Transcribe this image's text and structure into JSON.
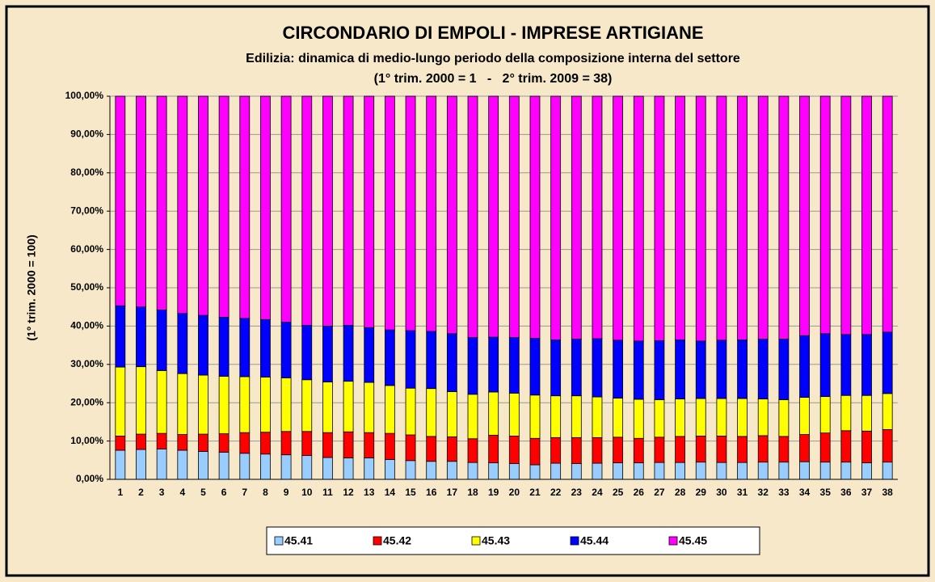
{
  "chart_data": {
    "type": "stacked_bar",
    "title": "CIRCONDARIO DI EMPOLI - IMPRESE ARTIGIANE",
    "subtitle": "Edilizia: dinamica di medio-lungo periodo della composizione interna del settore",
    "subtitle2": "(1° trim. 2000 = 1   -   2° trim. 2009 = 38)",
    "y_label": "(1° trim. 2000 = 100)",
    "categories": [
      1,
      2,
      3,
      4,
      5,
      6,
      7,
      8,
      9,
      10,
      11,
      12,
      13,
      14,
      15,
      16,
      17,
      18,
      19,
      20,
      21,
      22,
      23,
      24,
      25,
      26,
      27,
      28,
      29,
      30,
      31,
      32,
      33,
      34,
      35,
      36,
      37,
      38
    ],
    "ylim": [
      0,
      100
    ],
    "yticks": [
      {
        "value": 0,
        "label": "0,00%"
      },
      {
        "value": 10,
        "label": "10,00%"
      },
      {
        "value": 20,
        "label": "20,00%"
      },
      {
        "value": 30,
        "label": "30,00%"
      },
      {
        "value": 40,
        "label": "40,00%"
      },
      {
        "value": 50,
        "label": "50,00%"
      },
      {
        "value": 60,
        "label": "60,00%"
      },
      {
        "value": 70,
        "label": "70,00%"
      },
      {
        "value": 80,
        "label": "80,00%"
      },
      {
        "value": 90,
        "label": "90,00%"
      },
      {
        "value": 100,
        "label": "100,00%"
      }
    ],
    "grid": true,
    "legend": "bottom",
    "series": [
      {
        "name": "45.41",
        "color": "#99ccff",
        "values": [
          7.6,
          7.8,
          7.9,
          7.6,
          7.3,
          7.1,
          6.8,
          6.6,
          6.4,
          6.2,
          5.7,
          5.6,
          5.6,
          5.2,
          4.9,
          4.7,
          4.7,
          4.4,
          4.3,
          4.1,
          3.8,
          4.2,
          4.1,
          4.2,
          4.3,
          4.3,
          4.4,
          4.4,
          4.5,
          4.4,
          4.4,
          4.5,
          4.5,
          4.6,
          4.5,
          4.5,
          4.3,
          4.5
        ]
      },
      {
        "name": "45.42",
        "color": "#ff0000",
        "values": [
          3.7,
          4.0,
          4.1,
          4.1,
          4.5,
          4.8,
          5.4,
          5.7,
          6.1,
          6.3,
          6.5,
          6.8,
          6.6,
          6.8,
          6.7,
          6.5,
          6.4,
          6.2,
          7.2,
          7.2,
          6.9,
          6.7,
          6.8,
          6.7,
          6.7,
          6.4,
          6.6,
          6.8,
          6.8,
          6.9,
          6.8,
          6.9,
          6.7,
          7.1,
          7.6,
          8.2,
          8.3,
          8.5
        ]
      },
      {
        "name": "45.43",
        "color": "#ffff00",
        "values": [
          18.0,
          17.6,
          16.4,
          15.9,
          15.4,
          15.0,
          14.6,
          14.4,
          14.0,
          13.5,
          13.2,
          13.2,
          13.1,
          12.5,
          12.2,
          12.5,
          11.8,
          11.6,
          11.3,
          11.2,
          11.3,
          10.9,
          10.9,
          10.6,
          10.2,
          10.2,
          9.8,
          9.8,
          9.8,
          9.8,
          9.9,
          9.6,
          9.6,
          9.7,
          9.5,
          9.2,
          9.3,
          9.4
        ]
      },
      {
        "name": "45.44",
        "color": "#0000ff",
        "values": [
          16.0,
          15.6,
          15.8,
          15.7,
          15.6,
          15.4,
          15.2,
          15.0,
          14.5,
          14.2,
          14.6,
          14.6,
          14.3,
          14.5,
          15.0,
          14.9,
          15.1,
          14.8,
          14.3,
          14.5,
          14.8,
          14.6,
          14.8,
          15.2,
          15.1,
          15.2,
          15.4,
          15.4,
          15.0,
          15.2,
          15.3,
          15.6,
          15.8,
          16.1,
          16.4,
          15.9,
          15.9,
          16.0
        ]
      },
      {
        "name": "45.45",
        "color": "#ff00ff",
        "values": [
          54.7,
          55.0,
          55.8,
          56.7,
          57.2,
          57.7,
          58.0,
          58.3,
          59.0,
          59.8,
          60.0,
          59.8,
          60.4,
          61.0,
          61.2,
          61.4,
          62.0,
          63.0,
          62.9,
          63.0,
          63.2,
          63.6,
          63.4,
          63.3,
          63.7,
          63.9,
          63.8,
          63.6,
          63.9,
          63.7,
          63.6,
          63.4,
          63.4,
          62.5,
          62.0,
          62.2,
          62.2,
          61.6
        ]
      }
    ]
  }
}
